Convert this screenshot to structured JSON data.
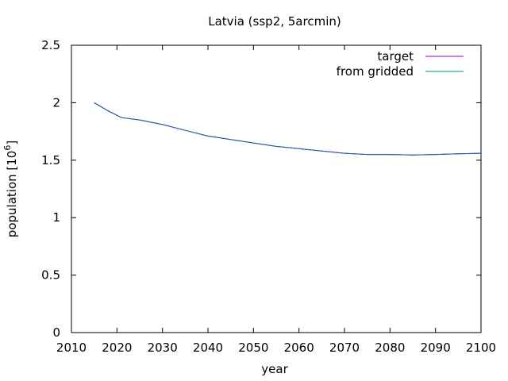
{
  "chart_data": {
    "type": "line",
    "title": "Latvia (ssp2, 5arcmin)",
    "xlabel": "year",
    "ylabel": "population [10",
    "ylabel_sup": "6",
    "ylabel_close": "]",
    "xlim": [
      2010,
      2100
    ],
    "ylim": [
      0,
      2.5
    ],
    "xticks": [
      2010,
      2020,
      2030,
      2040,
      2050,
      2060,
      2070,
      2080,
      2090,
      2100
    ],
    "xtick_labels": [
      "2010",
      "2020",
      "2030",
      "2040",
      "2050",
      "2060",
      "2070",
      "2080",
      "2090",
      "2100"
    ],
    "yticks": [
      0,
      0.5,
      1,
      1.5,
      2,
      2.5
    ],
    "ytick_labels": [
      "0",
      "0.5",
      "1",
      "1.5",
      "2",
      "2.5"
    ],
    "grid": false,
    "legend_position": "top-right",
    "series": [
      {
        "name": "target",
        "color": "#9400d3",
        "x": [
          2015,
          2018,
          2021,
          2025,
          2030,
          2035,
          2040,
          2045,
          2050,
          2055,
          2060,
          2065,
          2070,
          2075,
          2080,
          2085,
          2090,
          2095,
          2100
        ],
        "y": [
          2.0,
          1.93,
          1.87,
          1.85,
          1.81,
          1.76,
          1.71,
          1.68,
          1.65,
          1.62,
          1.6,
          1.58,
          1.56,
          1.55,
          1.55,
          1.545,
          1.55,
          1.555,
          1.56
        ]
      },
      {
        "name": "from gridded",
        "color": "#009e73",
        "x": [
          2015,
          2018,
          2021,
          2025,
          2030,
          2035,
          2040,
          2045,
          2050,
          2055,
          2060,
          2065,
          2070,
          2075,
          2080,
          2085,
          2090,
          2095,
          2100
        ],
        "y": [
          2.0,
          1.93,
          1.87,
          1.85,
          1.81,
          1.76,
          1.71,
          1.68,
          1.65,
          1.62,
          1.6,
          1.58,
          1.56,
          1.55,
          1.55,
          1.545,
          1.55,
          1.555,
          1.56
        ]
      }
    ]
  }
}
